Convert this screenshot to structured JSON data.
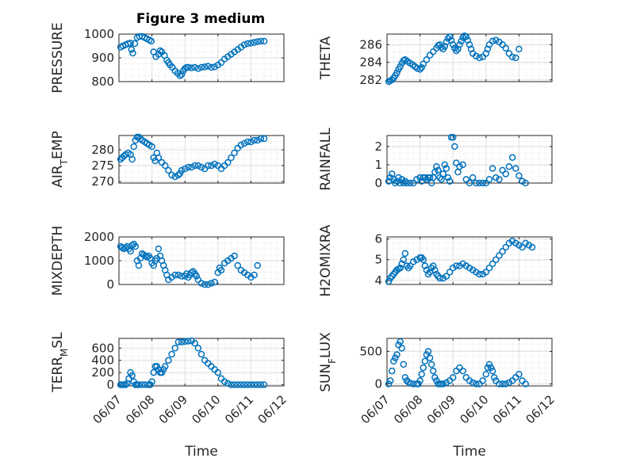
{
  "figure_title": "Figure 3 medium",
  "colors": {
    "marker": "#0072BD",
    "axis": "#262626",
    "grid": "#dfdfdf",
    "background": "#ffffff"
  },
  "chart_data": [
    {
      "type": "scatter",
      "ylabel": "PRESSURE",
      "xlabel": "",
      "xlim": [
        0,
        5
      ],
      "ylim": [
        800,
        1000
      ],
      "yticks": [
        800,
        900,
        1000
      ],
      "yticklabels": [
        "800",
        "900",
        "1000"
      ],
      "xticks": [
        0,
        1,
        2,
        3,
        4,
        5
      ],
      "xticklabels": [],
      "x": [
        0.05,
        0.12,
        0.2,
        0.28,
        0.35,
        0.38,
        0.42,
        0.48,
        0.55,
        0.62,
        0.7,
        0.78,
        0.85,
        0.92,
        0.98,
        1.05,
        1.12,
        1.2,
        1.25,
        1.3,
        1.38,
        1.45,
        1.5,
        1.55,
        1.62,
        1.7,
        1.78,
        1.85,
        1.9,
        1.95,
        2.0,
        2.05,
        2.1,
        2.2,
        2.3,
        2.4,
        2.5,
        2.6,
        2.7,
        2.8,
        2.9,
        3.0,
        3.1,
        3.2,
        3.3,
        3.4,
        3.5,
        3.6,
        3.7,
        3.8,
        3.9,
        4.0,
        4.1,
        4.2,
        4.3,
        4.4
      ],
      "y": [
        945,
        950,
        955,
        960,
        962,
        935,
        920,
        960,
        985,
        990,
        990,
        985,
        980,
        975,
        970,
        925,
        905,
        915,
        930,
        925,
        910,
        890,
        880,
        870,
        860,
        845,
        835,
        825,
        830,
        845,
        855,
        860,
        860,
        858,
        860,
        855,
        860,
        862,
        865,
        860,
        862,
        870,
        880,
        895,
        905,
        915,
        925,
        935,
        945,
        955,
        960,
        962,
        965,
        968,
        970,
        970
      ]
    },
    {
      "type": "scatter",
      "ylabel": "THETA",
      "xlabel": "",
      "xlim": [
        0,
        5
      ],
      "ylim": [
        281.8,
        287.2
      ],
      "yticks": [
        282,
        284,
        286
      ],
      "yticklabels": [
        "282",
        "284",
        "286"
      ],
      "xticks": [
        0,
        1,
        2,
        3,
        4,
        5
      ],
      "xticklabels": [],
      "x": [
        0.05,
        0.1,
        0.15,
        0.2,
        0.25,
        0.3,
        0.35,
        0.4,
        0.45,
        0.5,
        0.55,
        0.62,
        0.7,
        0.78,
        0.85,
        0.92,
        1.0,
        1.05,
        1.1,
        1.2,
        1.3,
        1.4,
        1.5,
        1.55,
        1.6,
        1.65,
        1.7,
        1.75,
        1.8,
        1.85,
        1.9,
        1.95,
        2.0,
        2.05,
        2.1,
        2.15,
        2.2,
        2.25,
        2.3,
        2.35,
        2.4,
        2.45,
        2.5,
        2.55,
        2.6,
        2.7,
        2.8,
        2.9,
        3.0,
        3.05,
        3.1,
        3.2,
        3.3,
        3.4,
        3.5,
        3.6,
        3.7,
        3.8,
        3.9,
        4.0
      ],
      "y": [
        281.8,
        281.9,
        282.0,
        282.2,
        282.5,
        282.8,
        283.2,
        283.5,
        283.9,
        284.2,
        284.3,
        284.1,
        283.9,
        283.7,
        283.5,
        283.3,
        283.2,
        283.4,
        283.8,
        284.3,
        284.8,
        285.2,
        285.6,
        285.9,
        286.0,
        285.7,
        285.5,
        285.8,
        286.3,
        286.7,
        286.9,
        286.5,
        286.0,
        285.6,
        285.3,
        285.5,
        286.0,
        286.4,
        286.8,
        287.0,
        286.9,
        286.5,
        286.0,
        285.5,
        285.0,
        284.7,
        284.5,
        284.6,
        285.0,
        285.5,
        286.0,
        286.4,
        286.5,
        286.3,
        286.0,
        285.6,
        285.0,
        284.6,
        284.5,
        285.5
      ]
    },
    {
      "type": "scatter",
      "ylabel": "AIR_TEMP",
      "xlabel": "",
      "xlim": [
        0,
        5
      ],
      "ylim": [
        269.5,
        284.5
      ],
      "yticks": [
        270,
        275,
        280
      ],
      "yticklabels": [
        "270",
        "275",
        "280"
      ],
      "xticks": [
        0,
        1,
        2,
        3,
        4,
        5
      ],
      "xticklabels": [],
      "x": [
        0.05,
        0.1,
        0.15,
        0.2,
        0.28,
        0.35,
        0.4,
        0.45,
        0.5,
        0.55,
        0.6,
        0.65,
        0.7,
        0.78,
        0.85,
        0.92,
        1.0,
        1.05,
        1.1,
        1.15,
        1.2,
        1.3,
        1.4,
        1.5,
        1.6,
        1.7,
        1.8,
        1.85,
        1.9,
        2.0,
        2.1,
        2.2,
        2.3,
        2.4,
        2.5,
        2.6,
        2.7,
        2.8,
        2.9,
        3.0,
        3.1,
        3.2,
        3.3,
        3.4,
        3.5,
        3.6,
        3.7,
        3.8,
        3.9,
        4.0,
        4.1,
        4.2,
        4.3,
        4.4
      ],
      "y": [
        277,
        277.5,
        278,
        278.5,
        279,
        278.5,
        277,
        281,
        283,
        284,
        284,
        283.5,
        283,
        282.5,
        282,
        281.5,
        281,
        277.5,
        276.5,
        279,
        277.5,
        276,
        275,
        273.5,
        272,
        271.5,
        272,
        272.5,
        273.5,
        274,
        274.5,
        274.5,
        275,
        275,
        274.5,
        274,
        275,
        275,
        275.5,
        275,
        274,
        275,
        276,
        277.5,
        279,
        280.5,
        281.5,
        282,
        282.5,
        282.5,
        283,
        283,
        283.5,
        283.5
      ]
    },
    {
      "type": "scatter",
      "ylabel": "RAINFALL",
      "xlabel": "",
      "xlim": [
        0,
        5
      ],
      "ylim": [
        0,
        2.6
      ],
      "yticks": [
        0,
        1,
        2
      ],
      "yticklabels": [
        "0",
        "1",
        "2"
      ],
      "xticks": [
        0,
        1,
        2,
        3,
        4,
        5
      ],
      "xticklabels": [],
      "x": [
        0.05,
        0.1,
        0.15,
        0.2,
        0.25,
        0.3,
        0.35,
        0.4,
        0.45,
        0.5,
        0.55,
        0.6,
        0.7,
        0.8,
        0.9,
        1.0,
        1.05,
        1.1,
        1.15,
        1.2,
        1.25,
        1.3,
        1.35,
        1.4,
        1.45,
        1.5,
        1.55,
        1.6,
        1.65,
        1.7,
        1.75,
        1.8,
        1.85,
        1.9,
        1.95,
        2.0,
        2.05,
        2.1,
        2.15,
        2.2,
        2.3,
        2.4,
        2.5,
        2.6,
        2.7,
        2.8,
        2.9,
        3.0,
        3.1,
        3.2,
        3.3,
        3.4,
        3.5,
        3.6,
        3.7,
        3.8,
        3.9,
        4.0,
        4.1,
        4.2
      ],
      "y": [
        0.1,
        0.3,
        0.5,
        0.2,
        0,
        0.1,
        0.3,
        0,
        0.2,
        0,
        0.1,
        0,
        0,
        0,
        0.2,
        0.3,
        0.1,
        0.3,
        0.3,
        0.2,
        0.3,
        0.3,
        0,
        0.3,
        0.6,
        0.9,
        0.7,
        0.3,
        0.2,
        0.5,
        1.0,
        0.8,
        0.3,
        0.1,
        2.5,
        2.5,
        2.0,
        1.1,
        0.6,
        0.9,
        1.0,
        0.2,
        0,
        0.3,
        0,
        0,
        0,
        0,
        0.2,
        0.8,
        0.3,
        0.2,
        0.7,
        0.5,
        0.9,
        1.4,
        0.8,
        0.4,
        0.1,
        0
      ]
    },
    {
      "type": "scatter",
      "ylabel": "MIXDEPTH",
      "xlabel": "",
      "xlim": [
        0,
        5
      ],
      "ylim": [
        0,
        2000
      ],
      "yticks": [
        0,
        1000,
        2000
      ],
      "yticklabels": [
        "0",
        "1000",
        "2000"
      ],
      "xticks": [
        0,
        1,
        2,
        3,
        4,
        5
      ],
      "xticklabels": [],
      "x": [
        0.05,
        0.1,
        0.15,
        0.2,
        0.25,
        0.3,
        0.35,
        0.4,
        0.45,
        0.5,
        0.55,
        0.6,
        0.65,
        0.7,
        0.75,
        0.8,
        0.85,
        0.9,
        0.95,
        1.0,
        1.05,
        1.1,
        1.15,
        1.2,
        1.25,
        1.3,
        1.35,
        1.4,
        1.45,
        1.5,
        1.6,
        1.7,
        1.8,
        1.9,
        2.0,
        2.05,
        2.1,
        2.15,
        2.2,
        2.25,
        2.3,
        2.35,
        2.4,
        2.5,
        2.6,
        2.7,
        2.8,
        2.9,
        3.0,
        3.05,
        3.1,
        3.2,
        3.3,
        3.4,
        3.5,
        3.6,
        3.7,
        3.8,
        3.9,
        4.0,
        4.1,
        4.2
      ],
      "y": [
        1600,
        1550,
        1500,
        1550,
        1600,
        1500,
        1400,
        1650,
        1700,
        1600,
        1000,
        800,
        1100,
        1300,
        1250,
        1200,
        1150,
        1200,
        1100,
        900,
        800,
        1000,
        1100,
        1500,
        1200,
        1000,
        800,
        600,
        400,
        200,
        300,
        400,
        400,
        350,
        350,
        450,
        300,
        400,
        500,
        550,
        450,
        350,
        200,
        50,
        0,
        0,
        50,
        100,
        500,
        700,
        600,
        900,
        1000,
        1100,
        1200,
        800,
        600,
        500,
        400,
        300,
        400,
        800
      ]
    },
    {
      "type": "scatter",
      "ylabel": "H2OMIXRA",
      "xlabel": "",
      "xlim": [
        0,
        5
      ],
      "ylim": [
        3.8,
        6.1
      ],
      "yticks": [
        4,
        5,
        6
      ],
      "yticklabels": [
        "4",
        "5",
        "6"
      ],
      "xticks": [
        0,
        1,
        2,
        3,
        4,
        5
      ],
      "xticklabels": [],
      "x": [
        0.05,
        0.1,
        0.15,
        0.2,
        0.25,
        0.3,
        0.35,
        0.4,
        0.45,
        0.5,
        0.55,
        0.6,
        0.65,
        0.7,
        0.8,
        0.9,
        1.0,
        1.05,
        1.1,
        1.15,
        1.2,
        1.25,
        1.3,
        1.35,
        1.4,
        1.45,
        1.5,
        1.55,
        1.6,
        1.7,
        1.8,
        1.9,
        2.0,
        2.1,
        2.2,
        2.3,
        2.4,
        2.5,
        2.6,
        2.7,
        2.8,
        2.9,
        3.0,
        3.1,
        3.2,
        3.3,
        3.4,
        3.5,
        3.6,
        3.7,
        3.8,
        3.9,
        4.0,
        4.1,
        4.2,
        4.3,
        4.4
      ],
      "y": [
        3.95,
        4.1,
        4.2,
        4.3,
        4.4,
        4.5,
        4.55,
        4.6,
        4.8,
        5.0,
        5.3,
        4.7,
        4.6,
        4.7,
        4.9,
        5.0,
        5.1,
        5.1,
        5.0,
        4.7,
        4.5,
        4.3,
        4.4,
        4.6,
        4.7,
        4.5,
        4.3,
        4.2,
        4.1,
        4.1,
        4.2,
        4.4,
        4.6,
        4.7,
        4.7,
        4.8,
        4.7,
        4.6,
        4.5,
        4.4,
        4.3,
        4.3,
        4.4,
        4.6,
        4.8,
        5.0,
        5.2,
        5.4,
        5.6,
        5.8,
        5.9,
        5.8,
        5.7,
        5.6,
        5.8,
        5.7,
        5.6
      ]
    },
    {
      "type": "scatter",
      "ylabel": "TERR_MSL",
      "xlabel": "Time",
      "xlim": [
        0,
        5
      ],
      "ylim": [
        -20,
        760
      ],
      "yticks": [
        0,
        200,
        400,
        600
      ],
      "yticklabels": [
        "0",
        "200",
        "400",
        "600"
      ],
      "xticks": [
        0,
        1,
        2,
        3,
        4,
        5
      ],
      "xticklabels": [
        "06/07",
        "06/08",
        "06/09",
        "06/10",
        "06/11",
        "06/12"
      ],
      "x": [
        0.05,
        0.1,
        0.15,
        0.2,
        0.25,
        0.3,
        0.35,
        0.4,
        0.45,
        0.5,
        0.55,
        0.6,
        0.7,
        0.8,
        0.9,
        0.95,
        1.0,
        1.05,
        1.1,
        1.15,
        1.2,
        1.25,
        1.3,
        1.35,
        1.4,
        1.5,
        1.6,
        1.7,
        1.8,
        1.9,
        2.0,
        2.1,
        2.2,
        2.3,
        2.4,
        2.5,
        2.6,
        2.7,
        2.8,
        2.9,
        3.0,
        3.1,
        3.2,
        3.3,
        3.4,
        3.5,
        3.6,
        3.7,
        3.8,
        3.9,
        4.0,
        4.1,
        4.2,
        4.3,
        4.4
      ],
      "y": [
        0,
        0,
        0,
        0,
        20,
        100,
        200,
        150,
        50,
        0,
        0,
        0,
        0,
        0,
        0,
        0,
        50,
        200,
        300,
        300,
        250,
        200,
        200,
        250,
        300,
        400,
        500,
        600,
        700,
        700,
        710,
        715,
        720,
        680,
        600,
        500,
        400,
        350,
        300,
        250,
        200,
        100,
        50,
        20,
        0,
        0,
        0,
        0,
        0,
        0,
        0,
        0,
        0,
        0,
        0
      ]
    },
    {
      "type": "scatter",
      "ylabel": "SUN_FLUX",
      "xlabel": "Time",
      "xlim": [
        0,
        5
      ],
      "ylim": [
        -30,
        700
      ],
      "yticks": [
        0,
        500
      ],
      "yticklabels": [
        "0",
        "500"
      ],
      "xticks": [
        0,
        1,
        2,
        3,
        4,
        5
      ],
      "xticklabels": [
        "06/07",
        "06/08",
        "06/09",
        "06/10",
        "06/11",
        "06/12"
      ],
      "x": [
        0.05,
        0.1,
        0.15,
        0.2,
        0.25,
        0.3,
        0.35,
        0.4,
        0.45,
        0.5,
        0.55,
        0.6,
        0.65,
        0.7,
        0.8,
        0.9,
        0.95,
        1.0,
        1.05,
        1.1,
        1.15,
        1.2,
        1.25,
        1.3,
        1.35,
        1.4,
        1.45,
        1.5,
        1.55,
        1.6,
        1.65,
        1.7,
        1.8,
        1.9,
        2.0,
        2.1,
        2.2,
        2.3,
        2.4,
        2.5,
        2.6,
        2.7,
        2.8,
        2.9,
        3.0,
        3.05,
        3.1,
        3.15,
        3.2,
        3.25,
        3.3,
        3.4,
        3.5,
        3.6,
        3.7,
        3.8,
        3.9,
        4.0,
        4.1,
        4.2
      ],
      "y": [
        0,
        50,
        200,
        350,
        400,
        450,
        600,
        650,
        550,
        300,
        100,
        50,
        30,
        10,
        0,
        0,
        0,
        50,
        150,
        250,
        350,
        450,
        500,
        400,
        300,
        200,
        100,
        50,
        0,
        0,
        0,
        0,
        20,
        50,
        100,
        200,
        250,
        200,
        100,
        50,
        20,
        0,
        0,
        50,
        150,
        250,
        300,
        250,
        200,
        100,
        50,
        0,
        0,
        0,
        20,
        50,
        100,
        150,
        50,
        0
      ]
    }
  ]
}
